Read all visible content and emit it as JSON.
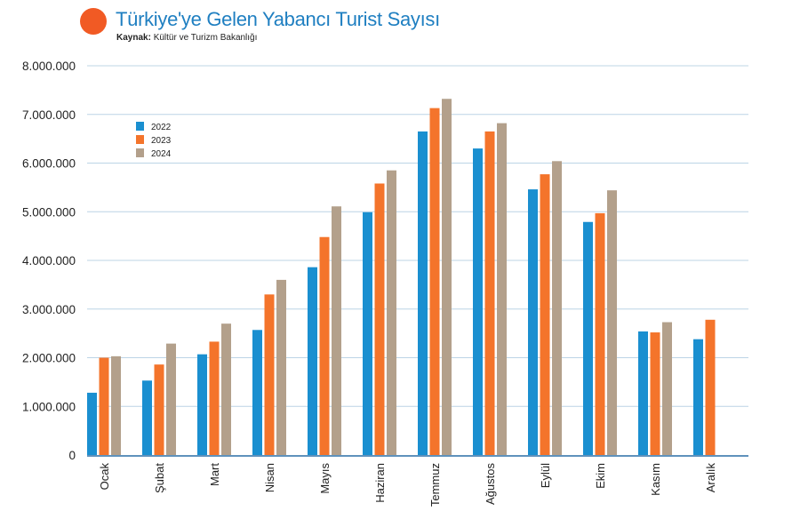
{
  "header": {
    "title": "Türkiye'ye Gelen Yabancı Turist Sayısı",
    "source_label": "Kaynak:",
    "source_text": "Kültür ve Turizm Bakanlığı"
  },
  "colors": {
    "accent_dot": "#f15a24",
    "title": "#1f7fc1",
    "grid": "#bcd4e6",
    "axis": "#2a6ea6"
  },
  "chart_data": {
    "type": "bar",
    "title": "Türkiye'ye Gelen Yabancı Turist Sayısı",
    "xlabel": "",
    "ylabel": "",
    "ylim": [
      0,
      8000000
    ],
    "yticks": [
      0,
      1000000,
      2000000,
      3000000,
      4000000,
      5000000,
      6000000,
      7000000,
      8000000
    ],
    "ytick_labels": [
      "0",
      "1.000.000",
      "2.000.000",
      "3.000.000",
      "4.000.000",
      "5.000.000",
      "6.000.000",
      "7.000.000",
      "8.000.000"
    ],
    "grid": true,
    "legend_position": "top-left",
    "categories": [
      "Ocak",
      "Şubat",
      "Mart",
      "Nisan",
      "Mayıs",
      "Haziran",
      "Temmuz",
      "Ağustos",
      "Eylül",
      "Ekim",
      "Kasım",
      "Aralık"
    ],
    "series": [
      {
        "name": "2022",
        "color": "#1a8fd0",
        "values": [
          1280000,
          1530000,
          2070000,
          2570000,
          3860000,
          4990000,
          6650000,
          6300000,
          5460000,
          4790000,
          2540000,
          2380000
        ]
      },
      {
        "name": "2023",
        "color": "#f4742b",
        "values": [
          2000000,
          1860000,
          2330000,
          3300000,
          4480000,
          5580000,
          7130000,
          6650000,
          5770000,
          4970000,
          2520000,
          2780000
        ]
      },
      {
        "name": "2024",
        "color": "#b3a08b",
        "values": [
          2030000,
          2290000,
          2700000,
          3600000,
          5110000,
          5850000,
          7320000,
          6820000,
          6040000,
          5440000,
          2730000,
          null
        ]
      }
    ]
  }
}
